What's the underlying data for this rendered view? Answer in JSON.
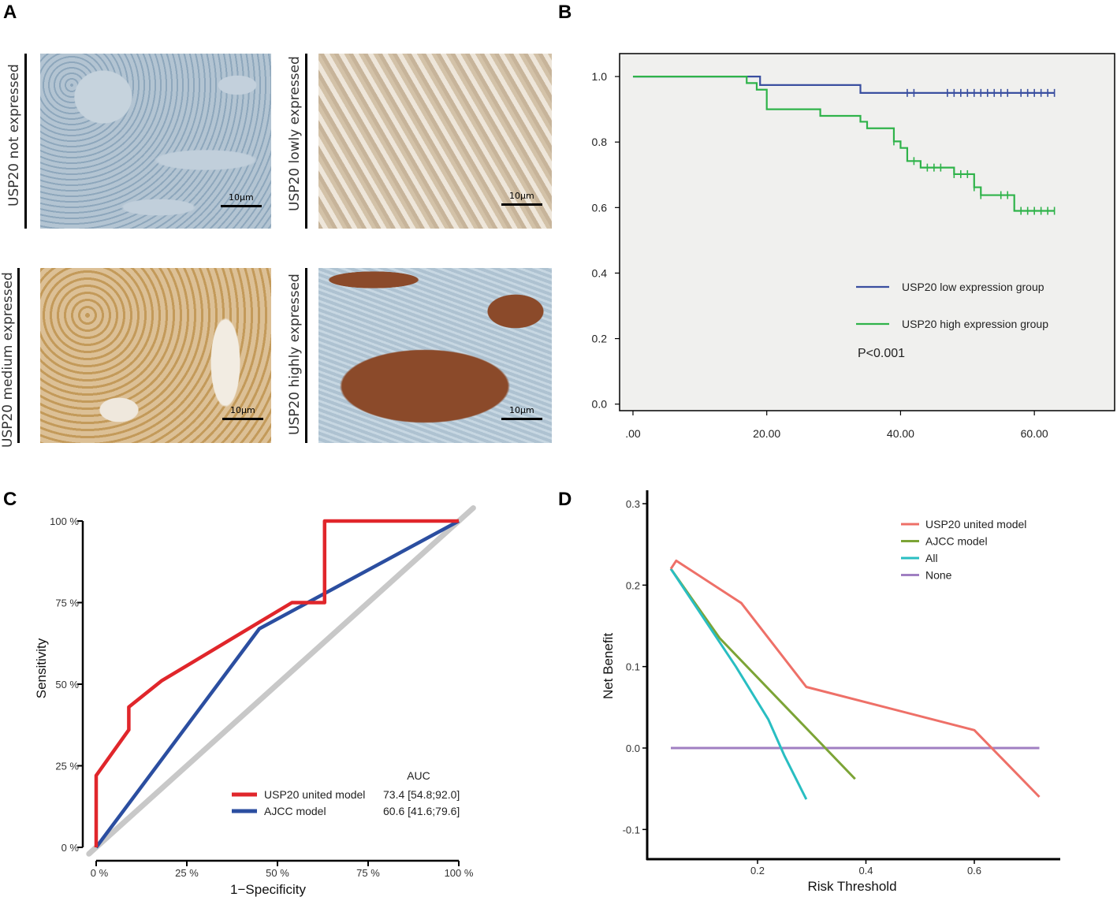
{
  "panel_letters": [
    "A",
    "B",
    "C",
    "D"
  ],
  "panel_a": {
    "scale_label": "10μm",
    "images": [
      {
        "label": "USP20 not expressed",
        "color_hint": "#b9c9d6"
      },
      {
        "label": "USP20 lowly expressed",
        "color_hint": "#d9ccb8"
      },
      {
        "label": "USP20 medium expressed",
        "color_hint": "#d3b27a"
      },
      {
        "label": "USP20 highly expressed",
        "color_hint": "#8a4b2a"
      }
    ]
  },
  "chart_data": [
    {
      "panel": "B",
      "type": "line",
      "subtype": "kaplan-meier",
      "x_ticks": [
        ".00",
        "20.00",
        "40.00",
        "60.00"
      ],
      "x_tick_values": [
        0,
        20,
        40,
        60
      ],
      "y_ticks": [
        "0.0",
        "0.2",
        "0.4",
        "0.6",
        "0.8",
        "1.0"
      ],
      "y_tick_values": [
        0,
        0.2,
        0.4,
        0.6,
        0.8,
        1.0
      ],
      "xlim": [
        -2,
        72
      ],
      "ylim": [
        -0.02,
        1.07
      ],
      "series": [
        {
          "name": "USP20 low expression group",
          "color": "#3a4fa0",
          "steps": [
            [
              0,
              1.0
            ],
            [
              19,
              0.974
            ],
            [
              34,
              0.95
            ],
            [
              63,
              0.95
            ]
          ],
          "censor_x": [
            41,
            42,
            47,
            48,
            49,
            50,
            51,
            52,
            53,
            54,
            55,
            56,
            58,
            59,
            60,
            61,
            62,
            63
          ]
        },
        {
          "name": "USP20 high expression group",
          "color": "#2fb34a",
          "steps": [
            [
              0,
              1.0
            ],
            [
              17,
              0.98
            ],
            [
              18.5,
              0.96
            ],
            [
              20,
              0.9
            ],
            [
              28,
              0.88
            ],
            [
              34,
              0.862
            ],
            [
              35,
              0.842
            ],
            [
              39,
              0.802
            ],
            [
              40,
              0.782
            ],
            [
              41,
              0.742
            ],
            [
              43,
              0.722
            ],
            [
              48,
              0.702
            ],
            [
              51,
              0.662
            ],
            [
              52,
              0.638
            ],
            [
              57,
              0.59
            ],
            [
              63,
              0.59
            ]
          ],
          "censor_x": [
            39,
            42,
            44,
            45,
            46,
            48,
            49,
            50,
            51,
            52,
            55,
            56,
            58,
            59,
            60,
            61,
            62,
            63
          ]
        }
      ],
      "annotation": "P<0.001",
      "background": "#f0f0ee"
    },
    {
      "panel": "C",
      "type": "line",
      "subtype": "roc",
      "title": "",
      "xlabel": "1−Specificity",
      "ylabel": "Sensitivity",
      "x_ticks": [
        "0 %",
        "25 %",
        "50 %",
        "75 %",
        "100 %"
      ],
      "y_ticks": [
        "0 %",
        "25 %",
        "50 %",
        "75 %",
        "100 %"
      ],
      "tick_values": [
        0,
        25,
        50,
        75,
        100
      ],
      "xlim": [
        -2,
        104
      ],
      "ylim": [
        -2,
        104
      ],
      "legend_header": "AUC",
      "series": [
        {
          "name": "USP20 united model",
          "auc": "73.4 [54.8;92.0]",
          "color": "#e0262b",
          "x": [
            0,
            0,
            9,
            9,
            18,
            27,
            36,
            45,
            54,
            63,
            63,
            100
          ],
          "y": [
            0,
            22,
            36,
            43,
            51,
            57,
            63,
            69,
            75,
            75,
            100,
            100
          ]
        },
        {
          "name": "AJCC model",
          "auc": "60.6 [41.6;79.6]",
          "color": "#2b4ea0",
          "x": [
            0,
            45,
            100
          ],
          "y": [
            0,
            67,
            100
          ]
        }
      ],
      "reference_line": {
        "x": [
          -2,
          104
        ],
        "y": [
          -2,
          104
        ],
        "color": "#c8c8c8"
      }
    },
    {
      "panel": "D",
      "type": "line",
      "subtype": "decision-curve",
      "xlabel": "Risk Threshold",
      "ylabel": "Net Benefit",
      "x_ticks": [
        "0.2",
        "0.4",
        "0.6"
      ],
      "x_tick_values": [
        0.2,
        0.4,
        0.6
      ],
      "y_ticks": [
        "-0.1",
        "0.0",
        "0.1",
        "0.2",
        "0.3"
      ],
      "y_tick_values": [
        -0.1,
        0.0,
        0.1,
        0.2,
        0.3
      ],
      "xlim": [
        0.0,
        0.76
      ],
      "ylim": [
        -0.13,
        0.32
      ],
      "series": [
        {
          "name": "USP20 united model",
          "color": "#ee7068",
          "x": [
            0.04,
            0.05,
            0.17,
            0.29,
            0.6,
            0.72
          ],
          "y": [
            0.22,
            0.23,
            0.178,
            0.075,
            0.022,
            -0.06
          ]
        },
        {
          "name": "AJCC model",
          "color": "#7ca436",
          "x": [
            0.04,
            0.13,
            0.38
          ],
          "y": [
            0.22,
            0.135,
            -0.038
          ]
        },
        {
          "name": "All",
          "color": "#29bec2",
          "x": [
            0.04,
            0.1,
            0.16,
            0.22,
            0.25,
            0.29
          ],
          "y": [
            0.22,
            0.16,
            0.1,
            0.035,
            -0.01,
            -0.063
          ]
        },
        {
          "name": "None",
          "color": "#a07fc2",
          "x": [
            0.04,
            0.72
          ],
          "y": [
            0,
            0
          ]
        }
      ]
    }
  ]
}
